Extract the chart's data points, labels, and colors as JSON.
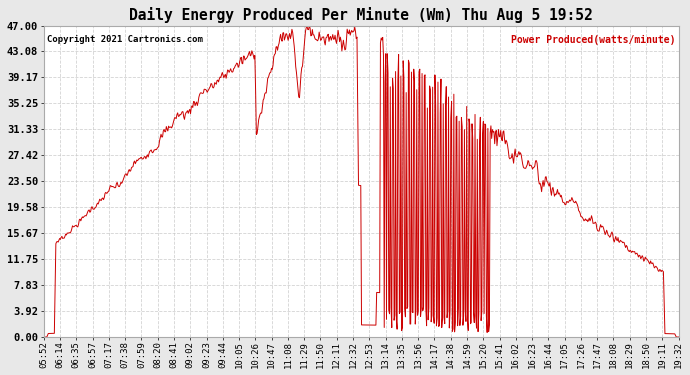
{
  "title": "Daily Energy Produced Per Minute (Wm) Thu Aug 5 19:52",
  "copyright": "Copyright 2021 Cartronics.com",
  "legend_label": "Power Produced(watts/minute)",
  "ylim": [
    0,
    47.0
  ],
  "yticks": [
    0.0,
    3.92,
    7.83,
    11.75,
    15.67,
    19.58,
    23.5,
    27.42,
    31.33,
    35.25,
    39.17,
    43.08,
    47.0
  ],
  "line_color": "#cc0000",
  "background_color": "#e8e8e8",
  "plot_bg_color": "#ffffff",
  "grid_color": "#c8c8c8",
  "title_color": "#000000",
  "copyright_color": "#000000",
  "legend_color": "#cc0000",
  "xtick_labels": [
    "05:52",
    "06:14",
    "06:35",
    "06:57",
    "07:17",
    "07:38",
    "07:59",
    "08:20",
    "08:41",
    "09:02",
    "09:23",
    "09:44",
    "10:05",
    "10:26",
    "10:47",
    "11:08",
    "11:29",
    "11:50",
    "12:11",
    "12:32",
    "12:53",
    "13:14",
    "13:35",
    "13:56",
    "14:17",
    "14:38",
    "14:59",
    "15:20",
    "15:41",
    "16:02",
    "16:23",
    "16:44",
    "17:05",
    "17:26",
    "17:47",
    "18:08",
    "18:29",
    "18:50",
    "19:11",
    "19:32"
  ],
  "n_points": 840
}
